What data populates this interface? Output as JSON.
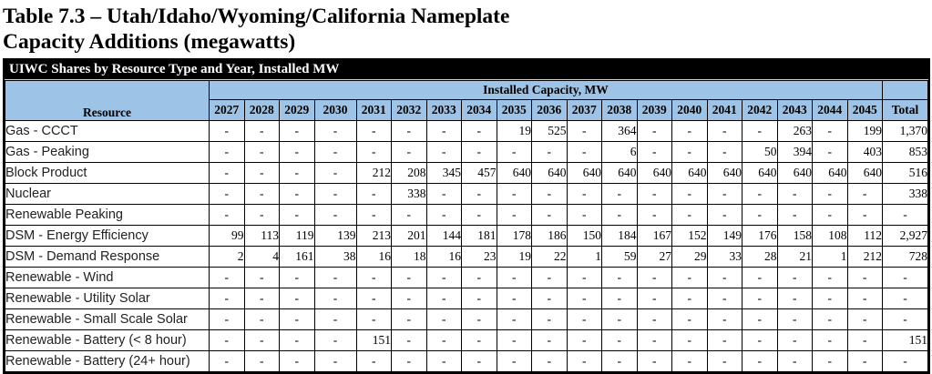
{
  "title": {
    "line1": "Table 7.3 – Utah/Idaho/Wyoming/California Nameplate",
    "line2": "Capacity Additions (megawatts)"
  },
  "table": {
    "caption": "UIWC Shares by Resource Type and Year, Installed MW",
    "group_header": "Installed Capacity, MW",
    "resource_header": "Resource",
    "total_header": "Total",
    "years": [
      "2027",
      "2028",
      "2029",
      "2030",
      "2031",
      "2032",
      "2033",
      "2034",
      "2035",
      "2036",
      "2037",
      "2038",
      "2039",
      "2040",
      "2041",
      "2042",
      "2043",
      "2044",
      "2045"
    ],
    "rows": [
      {
        "resource": "Gas - CCCT",
        "values": [
          "-",
          "-",
          "-",
          "-",
          "-",
          "-",
          "-",
          "-",
          "19",
          "525",
          "-",
          "364",
          "-",
          "-",
          "-",
          "-",
          "263",
          "-",
          "199"
        ],
        "total": "1,370"
      },
      {
        "resource": "Gas - Peaking",
        "values": [
          "-",
          "-",
          "-",
          "-",
          "-",
          "-",
          "-",
          "-",
          "-",
          "-",
          "-",
          "6",
          "-",
          "-",
          "-",
          "50",
          "394",
          "-",
          "403"
        ],
        "total": "853"
      },
      {
        "resource": "Block Product",
        "values": [
          "-",
          "-",
          "-",
          "-",
          "212",
          "208",
          "345",
          "457",
          "640",
          "640",
          "640",
          "640",
          "640",
          "640",
          "640",
          "640",
          "640",
          "640",
          "640"
        ],
        "total": "516"
      },
      {
        "resource": "Nuclear",
        "values": [
          "-",
          "-",
          "-",
          "-",
          "-",
          "338",
          "-",
          "-",
          "-",
          "-",
          "-",
          "-",
          "-",
          "-",
          "-",
          "-",
          "-",
          "-",
          "-"
        ],
        "total": "338"
      },
      {
        "resource": "Renewable Peaking",
        "values": [
          "-",
          "-",
          "-",
          "-",
          "-",
          "-",
          "-",
          "-",
          "-",
          "-",
          "-",
          "-",
          "-",
          "-",
          "-",
          "-",
          "-",
          "-",
          "-"
        ],
        "total": "-"
      },
      {
        "resource": "DSM - Energy Efficiency",
        "values": [
          "99",
          "113",
          "119",
          "139",
          "213",
          "201",
          "144",
          "181",
          "178",
          "186",
          "150",
          "184",
          "167",
          "152",
          "149",
          "176",
          "158",
          "108",
          "112"
        ],
        "total": "2,927"
      },
      {
        "resource": "DSM - Demand Response",
        "values": [
          "2",
          "4",
          "161",
          "38",
          "16",
          "18",
          "16",
          "23",
          "19",
          "22",
          "1",
          "59",
          "27",
          "29",
          "33",
          "28",
          "21",
          "1",
          "212"
        ],
        "total": "728"
      },
      {
        "resource": "Renewable - Wind",
        "values": [
          "-",
          "-",
          "-",
          "-",
          "-",
          "-",
          "-",
          "-",
          "-",
          "-",
          "-",
          "-",
          "-",
          "-",
          "-",
          "-",
          "-",
          "-",
          "-"
        ],
        "total": "-"
      },
      {
        "resource": "Renewable - Utility Solar",
        "values": [
          "-",
          "-",
          "-",
          "-",
          "-",
          "-",
          "-",
          "-",
          "-",
          "-",
          "-",
          "-",
          "-",
          "-",
          "-",
          "-",
          "-",
          "-",
          "-"
        ],
        "total": "-"
      },
      {
        "resource": "Renewable - Small Scale Solar",
        "values": [
          "-",
          "-",
          "-",
          "-",
          "-",
          "-",
          "-",
          "-",
          "-",
          "-",
          "-",
          "-",
          "-",
          "-",
          "-",
          "-",
          "-",
          "-",
          "-"
        ],
        "total": "-"
      },
      {
        "resource": "Renewable - Battery (< 8 hour)",
        "values": [
          "-",
          "-",
          "-",
          "-",
          "151",
          "-",
          "-",
          "-",
          "-",
          "-",
          "-",
          "-",
          "-",
          "-",
          "-",
          "-",
          "-",
          "-",
          "-"
        ],
        "total": "151"
      },
      {
        "resource": "Renewable - Battery (24+ hour)",
        "values": [
          "-",
          "-",
          "-",
          "-",
          "-",
          "-",
          "-",
          "-",
          "-",
          "-",
          "-",
          "-",
          "-",
          "-",
          "-",
          "-",
          "-",
          "-",
          "-"
        ],
        "total": "-"
      }
    ]
  },
  "colors": {
    "header_blue": "#9DC3E6",
    "caption_bg": "#000000",
    "caption_text": "#FFFFFF",
    "border": "#000000"
  }
}
